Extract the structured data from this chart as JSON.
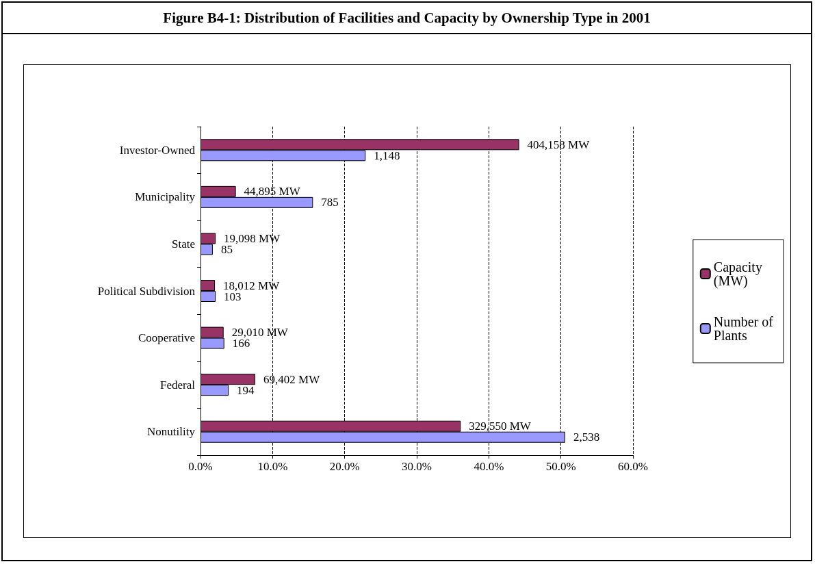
{
  "chart_data": {
    "type": "bar",
    "orientation": "horizontal",
    "title": "Figure B4-1: Distribution of Facilities and Capacity by Ownership Type in 2001",
    "categories": [
      "Investor-Owned",
      "Municipality",
      "State",
      "Political Subdivision",
      "Cooperative",
      "Federal",
      "Nonutility"
    ],
    "series": [
      {
        "name": "Capacity (MW)",
        "color": "#993366",
        "values": [
          44.2,
          4.9,
          2.1,
          2.0,
          3.2,
          7.6,
          36.1
        ]
      },
      {
        "name": "Number of Plants",
        "color": "#9999ff",
        "values": [
          22.9,
          15.6,
          1.7,
          2.1,
          3.3,
          3.9,
          50.6
        ]
      }
    ],
    "annotations": [
      {
        "text": "404,158 MW",
        "x": 44.2,
        "y": "Investor-Owned"
      },
      {
        "text": "44,895 MW",
        "x": 4.9,
        "y": "Municipality"
      },
      {
        "text": "19,098 MW",
        "x": 2.1,
        "y": "State"
      },
      {
        "text": "18,012 MW",
        "x": 2.0,
        "y": "Political Subdivision"
      },
      {
        "text": "29,010 MW",
        "x": 3.2,
        "y": "Cooperative"
      },
      {
        "text": "69,402 MW",
        "x": 7.6,
        "y": "Federal"
      },
      {
        "text": "329,550 MW",
        "x": 36.1,
        "y": "Nonutility"
      },
      {
        "text": "1,148",
        "x": 22.9,
        "y": "Investor-Owned"
      },
      {
        "text": "785",
        "x": 15.6,
        "y": "Municipality"
      },
      {
        "text": "85",
        "x": 1.7,
        "y": "State"
      },
      {
        "text": "103",
        "x": 2.1,
        "y": "Political Subdivision"
      },
      {
        "text": "166",
        "x": 3.3,
        "y": "Cooperative"
      },
      {
        "text": "194",
        "x": 3.9,
        "y": "Federal"
      },
      {
        "text": "2,538",
        "x": 50.6,
        "y": "Nonutility"
      }
    ],
    "xlim": [
      0,
      60
    ],
    "xticks": [
      {
        "value": 0,
        "label": "0.0%"
      },
      {
        "value": 10,
        "label": "10.0%"
      },
      {
        "value": 20,
        "label": "20.0%"
      },
      {
        "value": 30,
        "label": "30.0%"
      },
      {
        "value": 40,
        "label": "40.0%"
      },
      {
        "value": 50,
        "label": "50.0%"
      },
      {
        "value": 60,
        "label": "60.0%"
      }
    ],
    "grid": "x",
    "legend": "right"
  }
}
